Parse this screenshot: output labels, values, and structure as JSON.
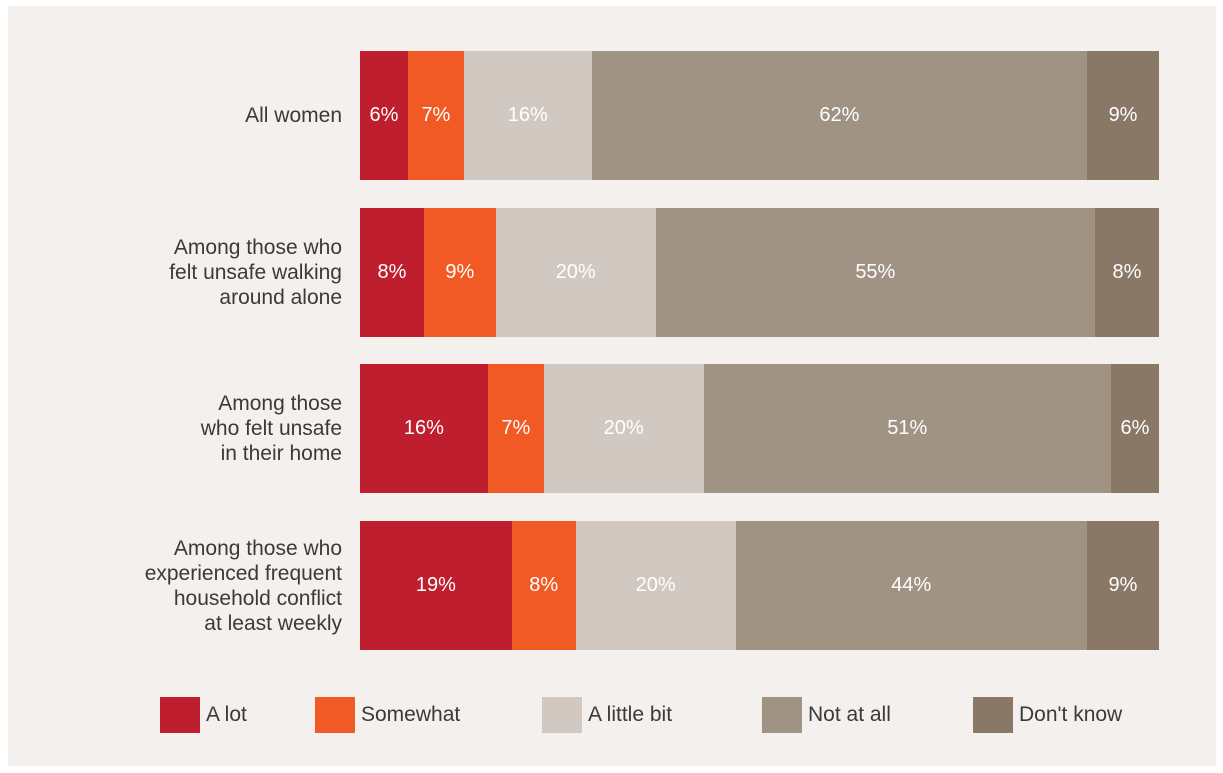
{
  "chart_data": {
    "type": "bar",
    "orientation": "horizontal",
    "stacked": true,
    "categories": [
      "All women",
      "Among those who\nfelt unsafe walking\naround alone",
      "Among those\nwho felt unsafe\nin their home",
      "Among those who\nexperienced frequent\nhousehold conflict\nat least weekly"
    ],
    "series": [
      {
        "name": "A lot",
        "color": "#be1e2d",
        "values": [
          6,
          8,
          16,
          19
        ],
        "labels": [
          "6%",
          "8%",
          "16%",
          "19%"
        ]
      },
      {
        "name": "Somewhat",
        "color": "#f15a24",
        "values": [
          7,
          9,
          7,
          8
        ],
        "labels": [
          "7%",
          "9%",
          "7%",
          "8%"
        ]
      },
      {
        "name": "A little bit",
        "color": "#d1c8c1",
        "values": [
          16,
          20,
          20,
          20
        ],
        "labels": [
          "16%",
          "20%",
          "20%",
          "20%"
        ]
      },
      {
        "name": "Not at all",
        "color": "#a09383",
        "values": [
          62,
          55,
          51,
          44
        ],
        "labels": [
          "62%",
          "55%",
          "51%",
          "44%"
        ]
      },
      {
        "name": "Don't know",
        "color": "#8a7866",
        "values": [
          9,
          8,
          6,
          9
        ],
        "labels": [
          "9%",
          "8%",
          "6%",
          "9%"
        ]
      }
    ],
    "legend_position": "bottom",
    "grid": false
  }
}
